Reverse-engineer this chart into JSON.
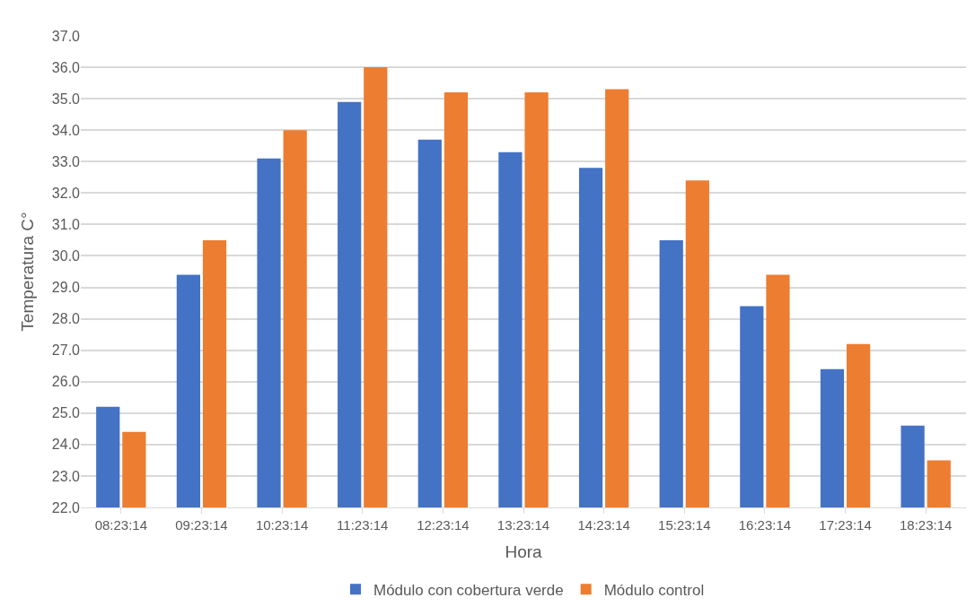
{
  "chart_data": {
    "type": "bar",
    "xlabel": "Hora",
    "ylabel": "Temperatura C°",
    "categories": [
      "08:23:14",
      "09:23:14",
      "10:23:14",
      "11:23:14",
      "12:23:14",
      "13:23:14",
      "14:23:14",
      "15:23:14",
      "16:23:14",
      "17:23:14",
      "18:23:14"
    ],
    "series": [
      {
        "name": "Módulo con cobertura verde",
        "color": "#4472c4",
        "values": [
          25.2,
          29.4,
          33.1,
          34.9,
          33.7,
          33.3,
          32.8,
          30.5,
          28.4,
          26.4,
          24.6
        ]
      },
      {
        "name": "Módulo control",
        "color": "#ed7d31",
        "values": [
          24.4,
          30.5,
          34.0,
          36.0,
          35.2,
          35.2,
          35.3,
          32.4,
          29.4,
          27.2,
          23.5
        ]
      }
    ],
    "ylim": [
      22,
      37
    ],
    "yticks": [
      {
        "value": 22,
        "label": "22.0"
      },
      {
        "value": 23,
        "label": "23.0"
      },
      {
        "value": 24,
        "label": "24.0"
      },
      {
        "value": 25,
        "label": "25.0"
      },
      {
        "value": 26,
        "label": "26.0"
      },
      {
        "value": 27,
        "label": "27.0"
      },
      {
        "value": 28,
        "label": "28.0"
      },
      {
        "value": 29,
        "label": "29.0"
      },
      {
        "value": 30,
        "label": "30.0"
      },
      {
        "value": 31,
        "label": "31.0"
      },
      {
        "value": 32,
        "label": "32.0"
      },
      {
        "value": 33,
        "label": "33.0"
      },
      {
        "value": 34,
        "label": "34.0"
      },
      {
        "value": 35,
        "label": "35.0"
      },
      {
        "value": 36,
        "label": "36.0"
      },
      {
        "value": 37,
        "label": "37.0"
      }
    ],
    "grid": "y",
    "legend": "bottom"
  }
}
